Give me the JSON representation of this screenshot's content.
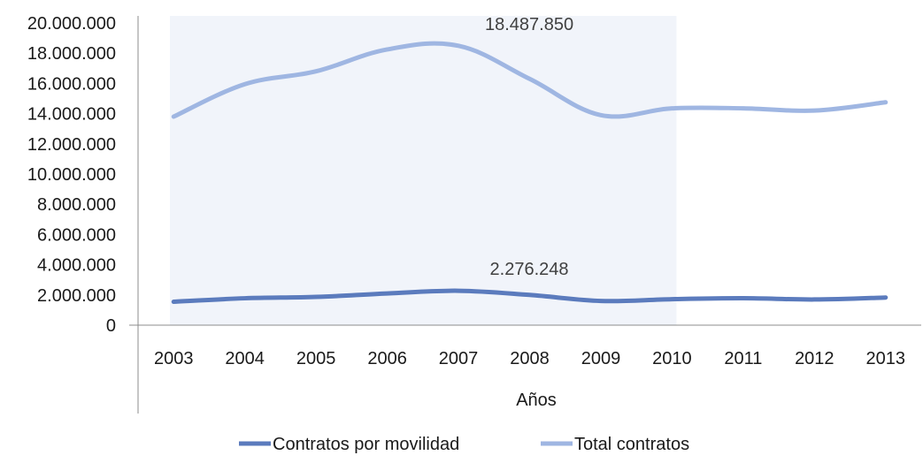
{
  "chart_data": {
    "type": "line",
    "categories": [
      "2003",
      "2004",
      "2005",
      "2006",
      "2007",
      "2008",
      "2009",
      "2010",
      "2011",
      "2012",
      "2013"
    ],
    "series": [
      {
        "name": "Contratos por movilidad",
        "color": "#5b7bbd",
        "values": [
          1550000,
          1780000,
          1870000,
          2100000,
          2276248,
          2000000,
          1600000,
          1720000,
          1780000,
          1700000,
          1830000
        ]
      },
      {
        "name": "Total contratos",
        "color": "#9fb6e2",
        "values": [
          13800000,
          15950000,
          16800000,
          18250000,
          18487850,
          16300000,
          13900000,
          14350000,
          14350000,
          14200000,
          14750000
        ]
      }
    ],
    "annotations": [
      {
        "series": 0,
        "index": 4,
        "text": "2.276.248"
      },
      {
        "series": 1,
        "index": 4,
        "text": "18.487.850"
      }
    ],
    "xlabel": "Años",
    "ylabel": "",
    "title": "",
    "ylim": [
      0,
      20000000
    ],
    "yticks": [
      "0",
      "2.000.000",
      "4.000.000",
      "6.000.000",
      "8.000.000",
      "10.000.000",
      "12.000.000",
      "14.000.000",
      "16.000.000",
      "18.000.000",
      "20.000.000"
    ],
    "highlight_range": [
      "2003",
      "2010"
    ],
    "highlight_color": "#f1f4fa",
    "grid": false,
    "legend": "bottom"
  }
}
